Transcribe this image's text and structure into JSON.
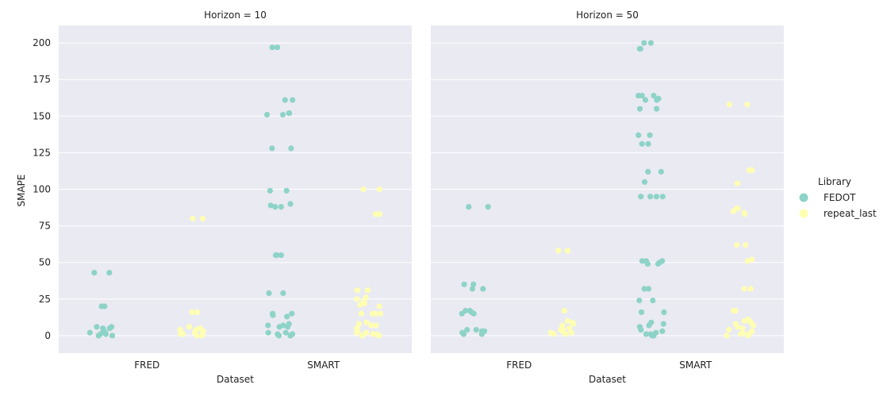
{
  "chart_data": {
    "type": "scatter",
    "subtype": "strip",
    "ylabel": "SMAPE",
    "xlabel": "Dataset",
    "categories": [
      "FRED",
      "SMART"
    ],
    "ylim": [
      -12,
      212
    ],
    "yticks": [
      0,
      25,
      50,
      75,
      100,
      125,
      150,
      175,
      200
    ],
    "grid": true,
    "legend": {
      "title": "Library",
      "placement": "right",
      "entries": [
        {
          "name": "FEDOT",
          "color": "#8dd3c7"
        },
        {
          "name": "repeat_last",
          "color": "#ffffb3"
        }
      ]
    },
    "panels": [
      {
        "title": "Horizon = 10",
        "series": [
          {
            "name": "FEDOT",
            "points": [
              [
                "FRED",
                43
              ],
              [
                "FRED",
                43
              ],
              [
                "FRED",
                20
              ],
              [
                "FRED",
                20
              ],
              [
                "FRED",
                6
              ],
              [
                "FRED",
                6
              ],
              [
                "FRED",
                5
              ],
              [
                "FRED",
                5
              ],
              [
                "FRED",
                4
              ],
              [
                "FRED",
                3
              ],
              [
                "FRED",
                2
              ],
              [
                "FRED",
                2
              ],
              [
                "FRED",
                1
              ],
              [
                "FRED",
                1
              ],
              [
                "FRED",
                0
              ],
              [
                "FRED",
                0
              ],
              [
                "SMART",
                197
              ],
              [
                "SMART",
                197
              ],
              [
                "SMART",
                161
              ],
              [
                "SMART",
                161
              ],
              [
                "SMART",
                152
              ],
              [
                "SMART",
                152
              ],
              [
                "SMART",
                151
              ],
              [
                "SMART",
                151
              ],
              [
                "SMART",
                128
              ],
              [
                "SMART",
                128
              ],
              [
                "SMART",
                99
              ],
              [
                "SMART",
                99
              ],
              [
                "SMART",
                90
              ],
              [
                "SMART",
                89
              ],
              [
                "SMART",
                88
              ],
              [
                "SMART",
                88
              ],
              [
                "SMART",
                55
              ],
              [
                "SMART",
                55
              ],
              [
                "SMART",
                55
              ],
              [
                "SMART",
                29
              ],
              [
                "SMART",
                29
              ],
              [
                "SMART",
                15
              ],
              [
                "SMART",
                15
              ],
              [
                "SMART",
                14
              ],
              [
                "SMART",
                13
              ],
              [
                "SMART",
                8
              ],
              [
                "SMART",
                7
              ],
              [
                "SMART",
                7
              ],
              [
                "SMART",
                6
              ],
              [
                "SMART",
                6
              ],
              [
                "SMART",
                2
              ],
              [
                "SMART",
                2
              ],
              [
                "SMART",
                1
              ],
              [
                "SMART",
                1
              ],
              [
                "SMART",
                0
              ],
              [
                "SMART",
                0
              ]
            ]
          },
          {
            "name": "repeat_last",
            "points": [
              [
                "FRED",
                80
              ],
              [
                "FRED",
                80
              ],
              [
                "FRED",
                16
              ],
              [
                "FRED",
                16
              ],
              [
                "FRED",
                6
              ],
              [
                "FRED",
                5
              ],
              [
                "FRED",
                4
              ],
              [
                "FRED",
                4
              ],
              [
                "FRED",
                3
              ],
              [
                "FRED",
                3
              ],
              [
                "FRED",
                2
              ],
              [
                "FRED",
                2
              ],
              [
                "FRED",
                1
              ],
              [
                "FRED",
                1
              ],
              [
                "FRED",
                0
              ],
              [
                "FRED",
                0
              ],
              [
                "SMART",
                100
              ],
              [
                "SMART",
                100
              ],
              [
                "SMART",
                83
              ],
              [
                "SMART",
                83
              ],
              [
                "SMART",
                31
              ],
              [
                "SMART",
                31
              ],
              [
                "SMART",
                26
              ],
              [
                "SMART",
                25
              ],
              [
                "SMART",
                23
              ],
              [
                "SMART",
                22
              ],
              [
                "SMART",
                21
              ],
              [
                "SMART",
                20
              ],
              [
                "SMART",
                15
              ],
              [
                "SMART",
                15
              ],
              [
                "SMART",
                15
              ],
              [
                "SMART",
                15
              ],
              [
                "SMART",
                9
              ],
              [
                "SMART",
                8
              ],
              [
                "SMART",
                7
              ],
              [
                "SMART",
                7
              ],
              [
                "SMART",
                5
              ],
              [
                "SMART",
                3
              ],
              [
                "SMART",
                2
              ],
              [
                "SMART",
                2
              ],
              [
                "SMART",
                1
              ],
              [
                "SMART",
                1
              ],
              [
                "SMART",
                0
              ],
              [
                "SMART",
                0
              ],
              [
                "SMART",
                0
              ]
            ]
          }
        ]
      },
      {
        "title": "Horizon = 50",
        "series": [
          {
            "name": "FEDOT",
            "points": [
              [
                "FRED",
                88
              ],
              [
                "FRED",
                88
              ],
              [
                "FRED",
                35
              ],
              [
                "FRED",
                35
              ],
              [
                "FRED",
                32
              ],
              [
                "FRED",
                32
              ],
              [
                "FRED",
                17
              ],
              [
                "FRED",
                17
              ],
              [
                "FRED",
                16
              ],
              [
                "FRED",
                15
              ],
              [
                "FRED",
                15
              ],
              [
                "FRED",
                4
              ],
              [
                "FRED",
                4
              ],
              [
                "FRED",
                3
              ],
              [
                "FRED",
                3
              ],
              [
                "FRED",
                2
              ],
              [
                "FRED",
                1
              ],
              [
                "FRED",
                1
              ],
              [
                "SMART",
                200
              ],
              [
                "SMART",
                200
              ],
              [
                "SMART",
                196
              ],
              [
                "SMART",
                196
              ],
              [
                "SMART",
                164
              ],
              [
                "SMART",
                164
              ],
              [
                "SMART",
                164
              ],
              [
                "SMART",
                162
              ],
              [
                "SMART",
                161
              ],
              [
                "SMART",
                161
              ],
              [
                "SMART",
                155
              ],
              [
                "SMART",
                155
              ],
              [
                "SMART",
                137
              ],
              [
                "SMART",
                137
              ],
              [
                "SMART",
                131
              ],
              [
                "SMART",
                131
              ],
              [
                "SMART",
                112
              ],
              [
                "SMART",
                112
              ],
              [
                "SMART",
                105
              ],
              [
                "SMART",
                95
              ],
              [
                "SMART",
                95
              ],
              [
                "SMART",
                95
              ],
              [
                "SMART",
                95
              ],
              [
                "SMART",
                51
              ],
              [
                "SMART",
                51
              ],
              [
                "SMART",
                51
              ],
              [
                "SMART",
                50
              ],
              [
                "SMART",
                49
              ],
              [
                "SMART",
                49
              ],
              [
                "SMART",
                32
              ],
              [
                "SMART",
                32
              ],
              [
                "SMART",
                24
              ],
              [
                "SMART",
                24
              ],
              [
                "SMART",
                16
              ],
              [
                "SMART",
                16
              ],
              [
                "SMART",
                9
              ],
              [
                "SMART",
                8
              ],
              [
                "SMART",
                7
              ],
              [
                "SMART",
                6
              ],
              [
                "SMART",
                4
              ],
              [
                "SMART",
                3
              ],
              [
                "SMART",
                2
              ],
              [
                "SMART",
                1
              ],
              [
                "SMART",
                1
              ],
              [
                "SMART",
                0
              ],
              [
                "SMART",
                0
              ]
            ]
          },
          {
            "name": "repeat_last",
            "points": [
              [
                "FRED",
                58
              ],
              [
                "FRED",
                58
              ],
              [
                "FRED",
                17
              ],
              [
                "FRED",
                10
              ],
              [
                "FRED",
                9
              ],
              [
                "FRED",
                8
              ],
              [
                "FRED",
                7
              ],
              [
                "FRED",
                6
              ],
              [
                "FRED",
                5
              ],
              [
                "FRED",
                4
              ],
              [
                "FRED",
                4
              ],
              [
                "FRED",
                3
              ],
              [
                "FRED",
                2
              ],
              [
                "FRED",
                2
              ],
              [
                "FRED",
                1
              ],
              [
                "FRED",
                1
              ],
              [
                "SMART",
                158
              ],
              [
                "SMART",
                158
              ],
              [
                "SMART",
                113
              ],
              [
                "SMART",
                113
              ],
              [
                "SMART",
                104
              ],
              [
                "SMART",
                87
              ],
              [
                "SMART",
                87
              ],
              [
                "SMART",
                85
              ],
              [
                "SMART",
                84
              ],
              [
                "SMART",
                83
              ],
              [
                "SMART",
                62
              ],
              [
                "SMART",
                62
              ],
              [
                "SMART",
                52
              ],
              [
                "SMART",
                51
              ],
              [
                "SMART",
                32
              ],
              [
                "SMART",
                32
              ],
              [
                "SMART",
                17
              ],
              [
                "SMART",
                17
              ],
              [
                "SMART",
                11
              ],
              [
                "SMART",
                10
              ],
              [
                "SMART",
                9
              ],
              [
                "SMART",
                8
              ],
              [
                "SMART",
                7
              ],
              [
                "SMART",
                6
              ],
              [
                "SMART",
                5
              ],
              [
                "SMART",
                4
              ],
              [
                "SMART",
                3
              ],
              [
                "SMART",
                2
              ],
              [
                "SMART",
                1
              ],
              [
                "SMART",
                1
              ],
              [
                "SMART",
                0
              ],
              [
                "SMART",
                0
              ]
            ]
          }
        ]
      }
    ]
  }
}
